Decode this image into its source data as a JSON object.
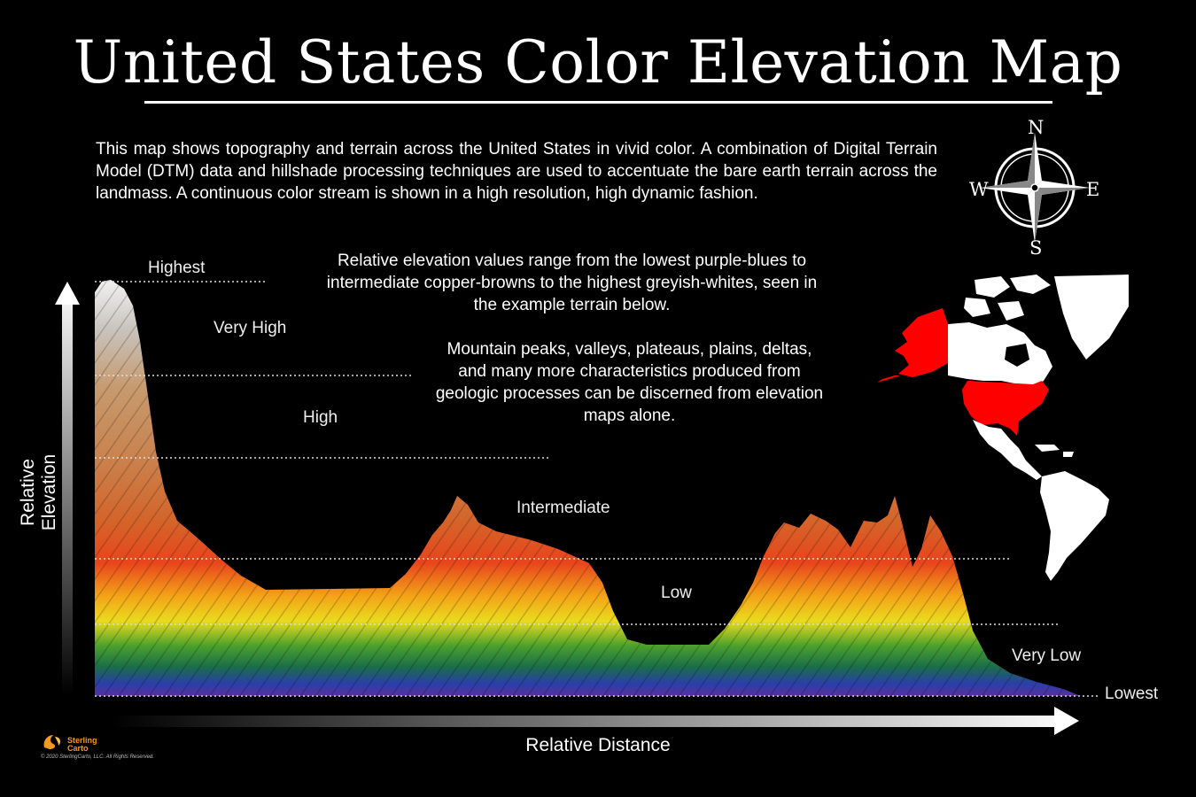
{
  "header": {
    "title": "United States Color Elevation Map"
  },
  "intro_text": "This map shows topography and terrain across the United States in vivid color. A combination of Digital Terrain Model (DTM) data and hillshade processing techniques are used to accentuate the bare earth terrain across the landmass. A continuous color stream is shown in a high resolution, high dynamic fashion.",
  "notes": {
    "relative_values": "Relative elevation values range from the lowest purple-blues to intermediate copper-browns to the highest greyish-whites, seen in the example terrain below.",
    "features": "Mountain peaks, valleys, plateaus, plains, deltas, and many more characteristics produced from geologic processes can be discerned from elevation maps alone."
  },
  "elevation_bands": [
    {
      "label": "Highest"
    },
    {
      "label": "Very High"
    },
    {
      "label": "High"
    },
    {
      "label": "Intermediate"
    },
    {
      "label": "Low"
    },
    {
      "label": "Very Low"
    },
    {
      "label": "Lowest"
    }
  ],
  "axes": {
    "y_label": "Relative Elevation",
    "x_label": "Relative Distance"
  },
  "compass": {
    "n": "N",
    "s": "S",
    "e": "E",
    "w": "W"
  },
  "logo": {
    "name_line1": "Sterling",
    "name_line2": "Carto",
    "copyright": "© 2020 SterlingCarto, LLC. All Rights Reserved."
  },
  "colors": {
    "background": "#000000",
    "highlight": "#ff0000",
    "landmass": "#ffffff",
    "logo_accent": "#f09a20"
  }
}
